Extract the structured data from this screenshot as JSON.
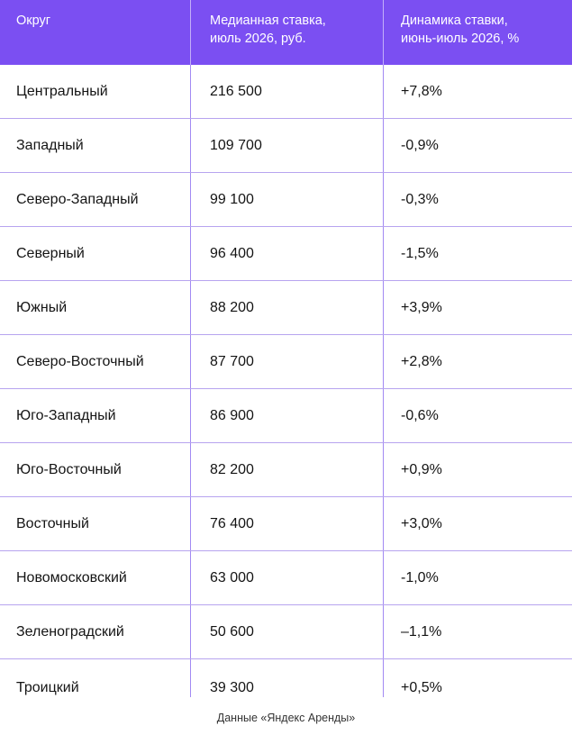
{
  "table": {
    "headers": {
      "district": "Округ",
      "median_rate": "Медианная ставка,\nиюль 2026, руб.",
      "dynamics": "Динамика ставки,\nиюнь-июль 2026, %"
    },
    "rows": [
      {
        "district": "Центральный",
        "rate": "216 500",
        "change": "+7,8%"
      },
      {
        "district": "Западный",
        "rate": "109 700",
        "change": "-0,9%"
      },
      {
        "district": "Северо-Западный",
        "rate": "99 100",
        "change": "-0,3%"
      },
      {
        "district": "Северный",
        "rate": "96 400",
        "change": "-1,5%"
      },
      {
        "district": "Южный",
        "rate": "88 200",
        "change": "+3,9%"
      },
      {
        "district": "Северо-Восточный",
        "rate": "87 700",
        "change": "+2,8%"
      },
      {
        "district": "Юго-Западный",
        "rate": "86 900",
        "change": "-0,6%"
      },
      {
        "district": "Юго-Восточный",
        "rate": "82 200",
        "change": "+0,9%"
      },
      {
        "district": "Восточный",
        "rate": "76 400",
        "change": "+3,0%"
      },
      {
        "district": "Новомосковский",
        "rate": "63 000",
        "change": "-1,0%"
      },
      {
        "district": "Зеленоградский",
        "rate": "50 600",
        "change": "–1,1%"
      },
      {
        "district": "Троицкий",
        "rate": "39 300",
        "change": "+0,5%"
      }
    ]
  },
  "caption": "Данные «Яндекс Аренды»",
  "colors": {
    "header_bg": "#7b4ff2",
    "divider": "#b7a4ef"
  }
}
